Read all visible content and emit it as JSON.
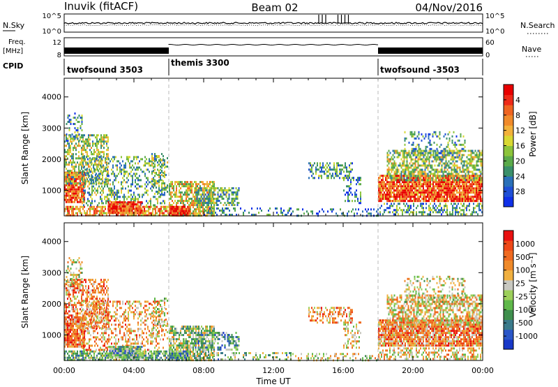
{
  "header": {
    "title": "Inuvik  (fitACF)",
    "beam": "Beam 02",
    "date": "04/Nov/2016"
  },
  "strips": {
    "nsky_label": "N.Sky",
    "nsearch_label": "N.Search",
    "nsky_ticks": [
      "10^5",
      "10^0"
    ],
    "nsearch_ticks": [
      "10^5",
      "10^0"
    ],
    "freq_label_1": "Freq.",
    "freq_label_2": "[MHz]",
    "freq_ticks": [
      "12",
      "8"
    ],
    "nave_label": "Nave",
    "nave_ticks": [
      "60",
      "0"
    ],
    "cpid_label": "CPID"
  },
  "cpid_segments": [
    {
      "label": "twofsound 3503",
      "start_h": 0,
      "end_h": 6
    },
    {
      "label": "themis 3300",
      "start_h": 6,
      "end_h": 18
    },
    {
      "label": "twofsound -3503",
      "start_h": 18,
      "end_h": 24
    }
  ],
  "chart_data": [
    {
      "type": "heatmap",
      "name": "power-panel",
      "ylabel": "Slant Range [km]",
      "xlabel": "Time UT",
      "x_range_hours": [
        0,
        24
      ],
      "ylim": [
        180,
        4600
      ],
      "y_ticks": [
        1000,
        2000,
        3000,
        4000
      ],
      "x_tick_labels": [
        "00:00",
        "04:00",
        "08:00",
        "12:00",
        "16:00",
        "20:00",
        "00:00"
      ],
      "colorbar": {
        "label": "Power [dB]",
        "ticks": [
          "4",
          "8",
          "12",
          "16",
          "20",
          "24",
          "28"
        ],
        "colors": [
          "#1030e8",
          "#1f4fd6",
          "#2a70b8",
          "#3a8f6a",
          "#5aaa4a",
          "#8cc43a",
          "#d8d832",
          "#f2b13a",
          "#f08a2a",
          "#ef6420",
          "#ee2a18",
          "#e80000"
        ]
      }
    },
    {
      "type": "heatmap",
      "name": "velocity-panel",
      "ylabel": "Slant Range [km]",
      "xlabel": "Time UT",
      "x_range_hours": [
        0,
        24
      ],
      "ylim": [
        180,
        4600
      ],
      "y_ticks": [
        1000,
        2000,
        3000,
        4000
      ],
      "x_tick_labels": [
        "00:00",
        "04:00",
        "08:00",
        "12:00",
        "16:00",
        "20:00",
        "00:00"
      ],
      "colorbar": {
        "label": "Velocity [m s⁻¹]",
        "ticks": [
          "1000",
          "500",
          "100",
          "25",
          "-25",
          "-100",
          "-500",
          "-1000"
        ],
        "colors": [
          "#1838c8",
          "#2a56c8",
          "#3a7a8a",
          "#3f8f4e",
          "#5fb84a",
          "#9ccf5a",
          "#c8c8c0",
          "#f0b040",
          "#ef8a2a",
          "#ef6a20",
          "#ee4818",
          "#e81010"
        ]
      }
    }
  ]
}
